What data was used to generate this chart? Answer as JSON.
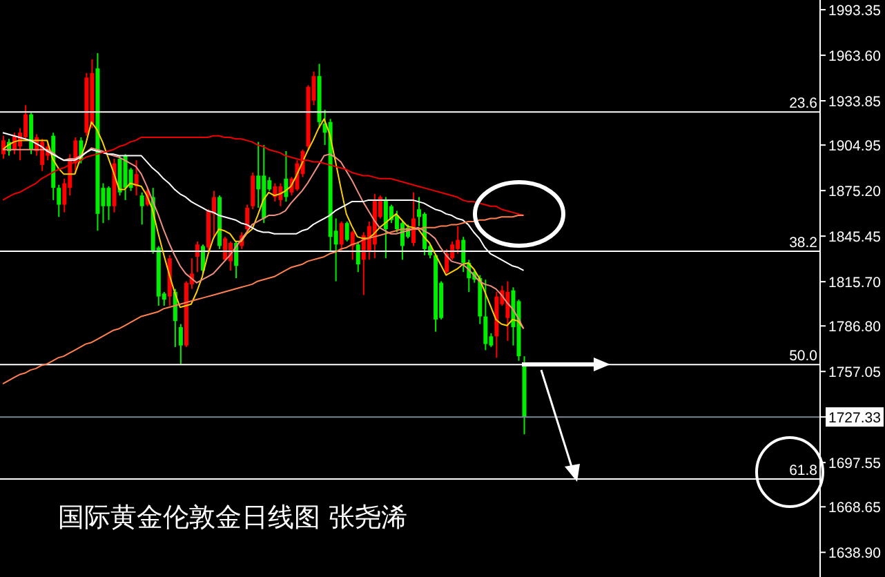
{
  "chart_data": {
    "type": "candlestick",
    "title": "国际黄金伦敦金日线图 张尧浠",
    "categories": [
      null,
      null,
      null,
      null,
      null,
      null,
      null,
      null,
      null,
      null,
      null,
      null,
      null,
      null,
      null,
      null,
      null,
      null,
      null,
      null,
      null,
      null,
      null,
      null,
      null,
      null,
      null,
      null,
      null,
      null,
      null,
      null,
      null,
      null,
      null,
      null,
      null,
      null,
      null,
      null,
      null,
      null,
      null,
      null,
      null,
      null,
      null,
      null,
      null,
      null,
      null,
      null,
      null,
      null,
      null,
      null,
      null,
      null,
      null,
      null,
      null,
      null,
      null,
      null,
      null,
      null,
      null,
      null,
      null,
      null,
      null,
      null,
      null,
      null,
      null,
      null,
      null,
      null,
      null,
      null,
      null,
      null,
      null,
      null,
      null,
      null,
      null,
      null,
      null,
      null,
      null,
      null,
      null,
      null,
      null,
      null,
      null,
      null,
      null,
      null,
      null,
      null,
      null,
      null,
      null,
      null,
      null,
      null,
      null,
      null,
      null,
      null,
      null,
      null,
      null,
      null,
      null,
      null,
      null,
      null,
      null,
      null,
      null,
      null,
      null,
      null,
      null,
      null,
      null,
      null,
      null,
      null,
      null,
      null,
      null,
      null,
      null,
      null,
      null,
      null,
      null,
      null,
      null,
      null,
      null,
      null,
      null,
      null
    ],
    "colors": [
      "#ff0000",
      "#00ee00",
      "#ff0000",
      "#ff0000",
      "#ff0000",
      "#00ee00",
      "#ff0000",
      "#ff0000",
      "#ff0000",
      "#00ee00",
      "#00ee00",
      "#ff0000",
      "#ff0000",
      "#ff0000",
      "#00ee00",
      "#ff0000",
      "#ff0000",
      "#00ee00",
      "#00ee00",
      "#00ee00",
      "#ff0000",
      "#00ee00",
      "#00ee00",
      "#00ee00",
      "#ff0000",
      "#00ee00",
      "#ff0000",
      "#00ee00",
      "#00ee00",
      "#00ee00",
      "#ff0000",
      "#00ee00",
      "#00ee00",
      "#ff0000",
      "#ff0000",
      "#ff0000",
      "#00ee00",
      "#ff0000",
      "#ff0000",
      "#00ee00",
      "#ff0000",
      "#ff0000",
      "#00ee00",
      "#ff0000",
      "#ff0000",
      "#ff0000",
      "#00ee00",
      "#00ee00",
      "#00ee00",
      "#ff0000",
      "#ff0000",
      "#00ee00",
      "#ff0000",
      "#ff0000",
      "#ff0000",
      "#ff0000",
      "#ff0000",
      "#00ee00",
      "#00ee00",
      "#00ee00",
      "#00ee00",
      "#ff0000",
      "#00ee00",
      "#ff0000",
      "#00ee00",
      "#ff0000",
      "#ff0000",
      "#ff0000",
      "#ff0000",
      "#00ee00",
      "#00ee00",
      "#00ee00",
      "#00ee00",
      "#00ee00",
      "#ff0000",
      "#00ee00",
      "#00ee00",
      "#00ee00",
      "#00ee00",
      "#00ee00",
      "#ff0000",
      "#ff0000",
      "#ff0000",
      "#00ee00",
      "#00ee00",
      "#00ee00",
      "#00ee00",
      "#00ee00",
      "#00ee00",
      "#ff0000",
      "#ff0000",
      "#ff0000",
      "#00ee00",
      "#00ee00",
      "#00ee00",
      null,
      null,
      null,
      null,
      null,
      null,
      null,
      null,
      null,
      null,
      null,
      null,
      null,
      null,
      null,
      null,
      null,
      null,
      null,
      null,
      null,
      null,
      null,
      null,
      null,
      null,
      null,
      null,
      null,
      null,
      null,
      null,
      null,
      null,
      null,
      null,
      null,
      null,
      null,
      null,
      null,
      null,
      null,
      null,
      null,
      null,
      null,
      null,
      null,
      null,
      null,
      null,
      null
    ],
    "ohlc": [
      [
        1899,
        1911,
        1896,
        1908
      ],
      [
        1907,
        1909,
        1898,
        1901
      ],
      [
        1902,
        1913,
        1899,
        1911
      ],
      [
        1904,
        1916,
        1895,
        1913
      ],
      [
        1910,
        1931,
        1908,
        1925
      ],
      [
        1925,
        1926,
        1899,
        1902
      ],
      [
        1901,
        1912,
        1898,
        1910
      ],
      [
        1892,
        1909,
        1888,
        1907
      ],
      [
        1898,
        1906,
        1895,
        1904
      ],
      [
        1911,
        1913,
        1869,
        1877
      ],
      [
        1877,
        1879,
        1858,
        1866
      ],
      [
        1866,
        1883,
        1861,
        1880
      ],
      [
        1877,
        1899,
        1872,
        1896
      ],
      [
        1893,
        1910,
        1886,
        1908
      ],
      [
        1908,
        1910,
        1893,
        1895
      ],
      [
        1913,
        1952,
        1911,
        1949
      ],
      [
        1919,
        1961,
        1916,
        1952
      ],
      [
        1955,
        1965,
        1849,
        1860
      ],
      [
        1877,
        1880,
        1854,
        1865
      ],
      [
        1877,
        1878,
        1856,
        1865
      ],
      [
        1865,
        1896,
        1861,
        1893
      ],
      [
        1896,
        1898,
        1872,
        1874
      ],
      [
        1898,
        1899,
        1869,
        1877
      ],
      [
        1889,
        1890,
        1875,
        1877
      ],
      [
        1878,
        1895,
        1872,
        1886
      ],
      [
        1872,
        1874,
        1853,
        1865
      ],
      [
        1866,
        1877,
        1865,
        1875
      ],
      [
        1871,
        1877,
        1834,
        1836
      ],
      [
        1838,
        1839,
        1800,
        1806
      ],
      [
        1808,
        1809,
        1800,
        1804
      ],
      [
        1806,
        1833,
        1800,
        1831
      ],
      [
        1809,
        1811,
        1773,
        1790
      ],
      [
        1786,
        1788,
        1762,
        1774
      ],
      [
        1774,
        1816,
        1773,
        1815
      ],
      [
        1814,
        1831,
        1811,
        1821
      ],
      [
        1832,
        1842,
        1822,
        1840
      ],
      [
        1839,
        1840,
        1821,
        1823
      ],
      [
        1838,
        1863,
        1836,
        1862
      ],
      [
        1860,
        1875,
        1844,
        1871
      ],
      [
        1871,
        1872,
        1837,
        1839
      ],
      [
        1830,
        1845,
        1829,
        1844
      ],
      [
        1829,
        1842,
        1823,
        1841
      ],
      [
        1841,
        1842,
        1818,
        1826
      ],
      [
        1839,
        1848,
        1837,
        1846
      ],
      [
        1850,
        1866,
        1848,
        1864
      ],
      [
        1865,
        1887,
        1863,
        1885
      ],
      [
        1885,
        1907,
        1864,
        1876
      ],
      [
        1885,
        1905,
        1854,
        1857
      ],
      [
        1882,
        1884,
        1875,
        1876
      ],
      [
        1871,
        1880,
        1868,
        1878
      ],
      [
        1869,
        1880,
        1865,
        1878
      ],
      [
        1883,
        1901,
        1868,
        1871
      ],
      [
        1874,
        1884,
        1872,
        1883
      ],
      [
        1876,
        1895,
        1875,
        1893
      ],
      [
        1886,
        1902,
        1884,
        1901
      ],
      [
        1904,
        1944,
        1902,
        1943
      ],
      [
        1934,
        1953,
        1931,
        1950
      ],
      [
        1950,
        1958,
        1916,
        1920
      ],
      [
        1919,
        1928,
        1905,
        1913
      ],
      [
        1920,
        1922,
        1836,
        1845
      ],
      [
        1849,
        1857,
        1816,
        1840
      ],
      [
        1840,
        1855,
        1836,
        1854
      ],
      [
        1854,
        1855,
        1842,
        1843
      ],
      [
        1839,
        1849,
        1830,
        1848
      ],
      [
        1840,
        1842,
        1822,
        1827
      ],
      [
        1830,
        1848,
        1807,
        1846
      ],
      [
        1836,
        1855,
        1830,
        1852
      ],
      [
        1840,
        1873,
        1831,
        1869
      ],
      [
        1858,
        1872,
        1857,
        1871
      ],
      [
        1869,
        1871,
        1831,
        1850
      ],
      [
        1865,
        1866,
        1854,
        1856
      ],
      [
        1859,
        1862,
        1848,
        1850
      ],
      [
        1854,
        1856,
        1830,
        1839
      ],
      [
        1851,
        1853,
        1844,
        1845
      ],
      [
        1841,
        1874,
        1839,
        1857
      ],
      [
        1863,
        1871,
        1852,
        1858
      ],
      [
        1860,
        1861,
        1833,
        1837
      ],
      [
        1839,
        1840,
        1831,
        1833
      ],
      [
        1833,
        1834,
        1783,
        1791
      ],
      [
        1815,
        1816,
        1791,
        1792
      ],
      [
        1822,
        1837,
        1821,
        1834
      ],
      [
        1831,
        1842,
        1830,
        1840
      ],
      [
        1837,
        1852,
        1834,
        1843
      ],
      [
        1843,
        1845,
        1822,
        1828
      ],
      [
        1828,
        1830,
        1809,
        1818
      ],
      [
        1822,
        1824,
        1815,
        1817
      ],
      [
        1818,
        1820,
        1788,
        1793
      ],
      [
        1793,
        1817,
        1771,
        1775
      ],
      [
        1780,
        1782,
        1773,
        1774
      ],
      [
        1780,
        1809,
        1766,
        1806
      ],
      [
        1801,
        1813,
        1800,
        1810
      ],
      [
        1792,
        1816,
        1777,
        1809
      ],
      [
        1810,
        1812,
        1774,
        1786
      ],
      [
        1803,
        1804,
        1764,
        1767
      ],
      [
        1762,
        1767,
        1716,
        1727
      ],
      null,
      null,
      null,
      null,
      null,
      null,
      null,
      null,
      null,
      null,
      null,
      null,
      null,
      null,
      null,
      null,
      null,
      null,
      null,
      null,
      null,
      null,
      null,
      null,
      null,
      null,
      null,
      null,
      null,
      null,
      null,
      null,
      null,
      null,
      null,
      null,
      null,
      null,
      null,
      null,
      null,
      null,
      null,
      null,
      null,
      null,
      null,
      null,
      null,
      null,
      null,
      null,
      null
    ],
    "series": [
      {
        "type": "line",
        "color": "#ffd000",
        "values": [
          1902,
          1905,
          1907,
          1908,
          1908,
          1908,
          1908,
          1908,
          1908,
          1896,
          1890,
          1886,
          1886,
          1886,
          1896,
          1906,
          1920,
          1915,
          1907,
          1897,
          1887,
          1876,
          1876,
          1880,
          1879,
          1878,
          1872,
          1863,
          1848,
          1834,
          1821,
          1809,
          1799,
          1800,
          1801,
          1809,
          1819,
          1833,
          1844,
          1850,
          1849,
          1847,
          1842,
          1842,
          1847,
          1850,
          1859,
          1869,
          1874,
          1872,
          1873,
          1875,
          1878,
          1885,
          1893,
          1901,
          1908,
          1916,
          1922,
          1912,
          1895,
          1877,
          1860,
          1852,
          1845,
          1844,
          1844,
          1847,
          1851,
          1854,
          1857,
          1860,
          1856,
          1852,
          1851,
          1850,
          1845,
          1841,
          1834,
          1827,
          1820,
          1822,
          1824,
          1827,
          1828,
          1824,
          1818,
          1809,
          1800,
          1791,
          1788,
          1787,
          1791,
          1790,
          1785,
          null,
          null,
          null,
          null,
          null,
          null,
          null,
          null,
          null,
          null,
          null,
          null,
          null,
          null,
          null,
          null,
          null,
          null,
          null,
          null,
          null,
          null,
          null,
          null,
          null,
          null,
          null,
          null,
          null,
          null,
          null,
          null,
          null,
          null,
          null,
          null,
          null,
          null,
          null,
          null,
          null,
          null,
          null,
          null,
          null,
          null,
          null,
          null,
          null,
          null,
          null,
          null,
          null
        ]
      },
      {
        "type": "line",
        "color": "#f09080",
        "values": [
          1902,
          1902,
          1902,
          1902,
          1902,
          1902,
          1902,
          1902,
          1902,
          1900,
          1897,
          1895,
          1896,
          1896,
          1898,
          1900,
          1903,
          1902,
          1901,
          1899,
          1898,
          1897,
          1895,
          1893,
          1891,
          1886,
          1878,
          1869,
          1860,
          1850,
          1841,
          1833,
          1826,
          1821,
          1818,
          1815,
          1817,
          1819,
          1821,
          1825,
          1829,
          1833,
          1838,
          1843,
          1848,
          1853,
          1855,
          1857,
          1859,
          1859,
          1860,
          1862,
          1867,
          1871,
          1875,
          1880,
          1886,
          1892,
          1898,
          1899,
          1897,
          1894,
          1888,
          1882,
          1875,
          1868,
          1862,
          1856,
          1851,
          1849,
          1847,
          1847,
          1848,
          1849,
          1850,
          1851,
          1849,
          1847,
          1844,
          1838,
          1833,
          1829,
          1828,
          1827,
          1824,
          1820,
          1816,
          1814,
          1813,
          1811,
          1807,
          1802,
          1798,
          1792,
          1785,
          null,
          null,
          null,
          null,
          null,
          null,
          null,
          null,
          null,
          null,
          null,
          null,
          null,
          null,
          null,
          null,
          null,
          null,
          null,
          null,
          null,
          null,
          null,
          null,
          null,
          null,
          null,
          null,
          null,
          null,
          null,
          null,
          null,
          null,
          null,
          null,
          null,
          null,
          null,
          null,
          null,
          null,
          null,
          null,
          null,
          null,
          null,
          null,
          null,
          null,
          null,
          null,
          null
        ]
      },
      {
        "type": "line",
        "color": "#ffffff",
        "values": [
          1913,
          1912,
          1911,
          1910,
          1909,
          1908,
          1906,
          1904,
          1901,
          1899,
          1897,
          1895,
          1895,
          1895,
          1897,
          1900,
          1902,
          1901,
          1900,
          1899,
          1899,
          1898,
          1898,
          1898,
          1898,
          1898,
          1894,
          1890,
          1887,
          1883,
          1880,
          1876,
          1873,
          1871,
          1868,
          1866,
          1864,
          1862,
          1861,
          1859,
          1858,
          1857,
          1856,
          1854,
          1853,
          1851,
          1849,
          1848,
          1848,
          1847,
          1847,
          1847,
          1847,
          1847,
          1849,
          1850,
          1853,
          1855,
          1857,
          1859,
          1862,
          1864,
          1866,
          1868,
          1868,
          1868,
          1869,
          1869,
          1869,
          1869,
          1869,
          1869,
          1869,
          1869,
          1869,
          1868,
          1867,
          1865,
          1863,
          1862,
          1860,
          1859,
          1857,
          1856,
          1853,
          1848,
          1844,
          1838,
          1834,
          1832,
          1830,
          1828,
          1826,
          1825,
          1823,
          null,
          null,
          null,
          null,
          null,
          null,
          null,
          null,
          null,
          null,
          null,
          null,
          null,
          null,
          null,
          null,
          null,
          null,
          null,
          null,
          null,
          null,
          null,
          null,
          null,
          null,
          null,
          null,
          null,
          null,
          null,
          null,
          null,
          null,
          null,
          null,
          null,
          null,
          null,
          null,
          null,
          null,
          null,
          null,
          null,
          null,
          null,
          null,
          null,
          null,
          null,
          null,
          null
        ]
      },
      {
        "type": "line",
        "color": "#ee0000",
        "values": [
          1869,
          1871,
          1873,
          1874,
          1876,
          1878,
          1880,
          1883,
          1885,
          1887,
          1889,
          1890,
          1892,
          1894,
          1895,
          1897,
          1898,
          1899,
          1900,
          1901,
          1902,
          1904,
          1905,
          1907,
          1908,
          1910,
          1910,
          1910,
          1910,
          1910,
          1910,
          1910,
          1910,
          1910,
          1910,
          1910,
          1910,
          1910,
          1911,
          1911,
          1910,
          1910,
          1909,
          1909,
          1908,
          1907,
          1905,
          1904,
          1902,
          1901,
          1900,
          1898,
          1897,
          1896,
          1895,
          1895,
          1894,
          1894,
          1893,
          1892,
          1891,
          1890,
          1889,
          1887,
          1886,
          1885,
          1885,
          1884,
          1883,
          1883,
          1883,
          1882,
          1881,
          1880,
          1879,
          1878,
          1877,
          1876,
          1875,
          1874,
          1873,
          1872,
          1871,
          1869,
          1868,
          1868,
          1867,
          1866,
          1865,
          1865,
          1863,
          1862,
          1861,
          1860,
          1859,
          null,
          null,
          null,
          null,
          null,
          null,
          null,
          null,
          null,
          null,
          null,
          null,
          null,
          null,
          null,
          null,
          null,
          null,
          null,
          null,
          null,
          null,
          null,
          null,
          null,
          null,
          null,
          null,
          null,
          null,
          null,
          null,
          null,
          null,
          null,
          null,
          null,
          null,
          null,
          null,
          null,
          null,
          null,
          null,
          null,
          null,
          null,
          null,
          null,
          null,
          null,
          null,
          null
        ]
      },
      {
        "type": "line",
        "color": "#ff8050",
        "values": [
          1749,
          1751,
          1753,
          1755,
          1756,
          1758,
          1759,
          1761,
          1762,
          1764,
          1766,
          1767,
          1769,
          1771,
          1773,
          1775,
          1776,
          1778,
          1780,
          1782,
          1784,
          1785,
          1787,
          1789,
          1791,
          1793,
          1794,
          1795,
          1796,
          1798,
          1799,
          1800,
          1801,
          1802,
          1803,
          1804,
          1805,
          1806,
          1807,
          1808,
          1809,
          1810,
          1811,
          1812,
          1813,
          1814,
          1816,
          1817,
          1818,
          1819,
          1821,
          1823,
          1825,
          1826,
          1827,
          1829,
          1830,
          1831,
          1832,
          1834,
          1835,
          1837,
          1838,
          1840,
          1841,
          1843,
          1844,
          1845,
          1846,
          1847,
          1848,
          1849,
          1850,
          1850,
          1850,
          1850,
          1851,
          1851,
          1851,
          1852,
          1852,
          1853,
          1853,
          1854,
          1855,
          1855,
          1856,
          1856,
          1857,
          1857,
          1858,
          1858,
          1858,
          1859,
          1859,
          null,
          null,
          null,
          null,
          null,
          null,
          null,
          null,
          null,
          null,
          null,
          null,
          null,
          null,
          null,
          null,
          null,
          null,
          null,
          null,
          null,
          null,
          null,
          null,
          null,
          null,
          null,
          null,
          null,
          null,
          null,
          null,
          null,
          null,
          null,
          null,
          null,
          null,
          null,
          null,
          null,
          null,
          null,
          null,
          null,
          null,
          null,
          null,
          null,
          null,
          null,
          null,
          null
        ]
      }
    ],
    "ylim": [
      1622.8,
      1999.7
    ],
    "yticks": [
      {
        "value": 1993.35,
        "label": "1993.35"
      },
      {
        "value": 1963.6,
        "label": "1963.60"
      },
      {
        "value": 1933.85,
        "label": "1933.85"
      },
      {
        "value": 1904.95,
        "label": "1904.95"
      },
      {
        "value": 1875.2,
        "label": "1875.20"
      },
      {
        "value": 1845.45,
        "label": "1845.45"
      },
      {
        "value": 1815.7,
        "label": "1815.70"
      },
      {
        "value": 1786.8,
        "label": "1786.80"
      },
      {
        "value": 1757.05,
        "label": "1757.05"
      },
      {
        "value": 1727.33,
        "label": "1727.33"
      },
      {
        "value": 1697.55,
        "label": "1697.55"
      },
      {
        "value": 1668.65,
        "label": "1668.65"
      },
      {
        "value": 1638.9,
        "label": "1638.90"
      }
    ],
    "ref_lines": [
      {
        "axis": "y",
        "value": 1926.6,
        "color": "#ffffff"
      },
      {
        "axis": "y",
        "value": 1835.6,
        "color": "#ffffff"
      },
      {
        "axis": "y",
        "value": 1761.6,
        "color": "#ffffff"
      },
      {
        "axis": "y",
        "value": 1686.8,
        "color": "#ffffff"
      },
      {
        "axis": "y",
        "value": 1727.33,
        "color": "#7a8898"
      }
    ],
    "annotations": [
      {
        "text": "23.6",
        "y": 1926.6
      },
      {
        "text": "38.2",
        "y": 1835.6
      },
      {
        "text": "50.0",
        "y": 1761.6
      },
      {
        "text": "61.8",
        "y": 1686.8
      }
    ],
    "tick_labels": "y"
  }
}
